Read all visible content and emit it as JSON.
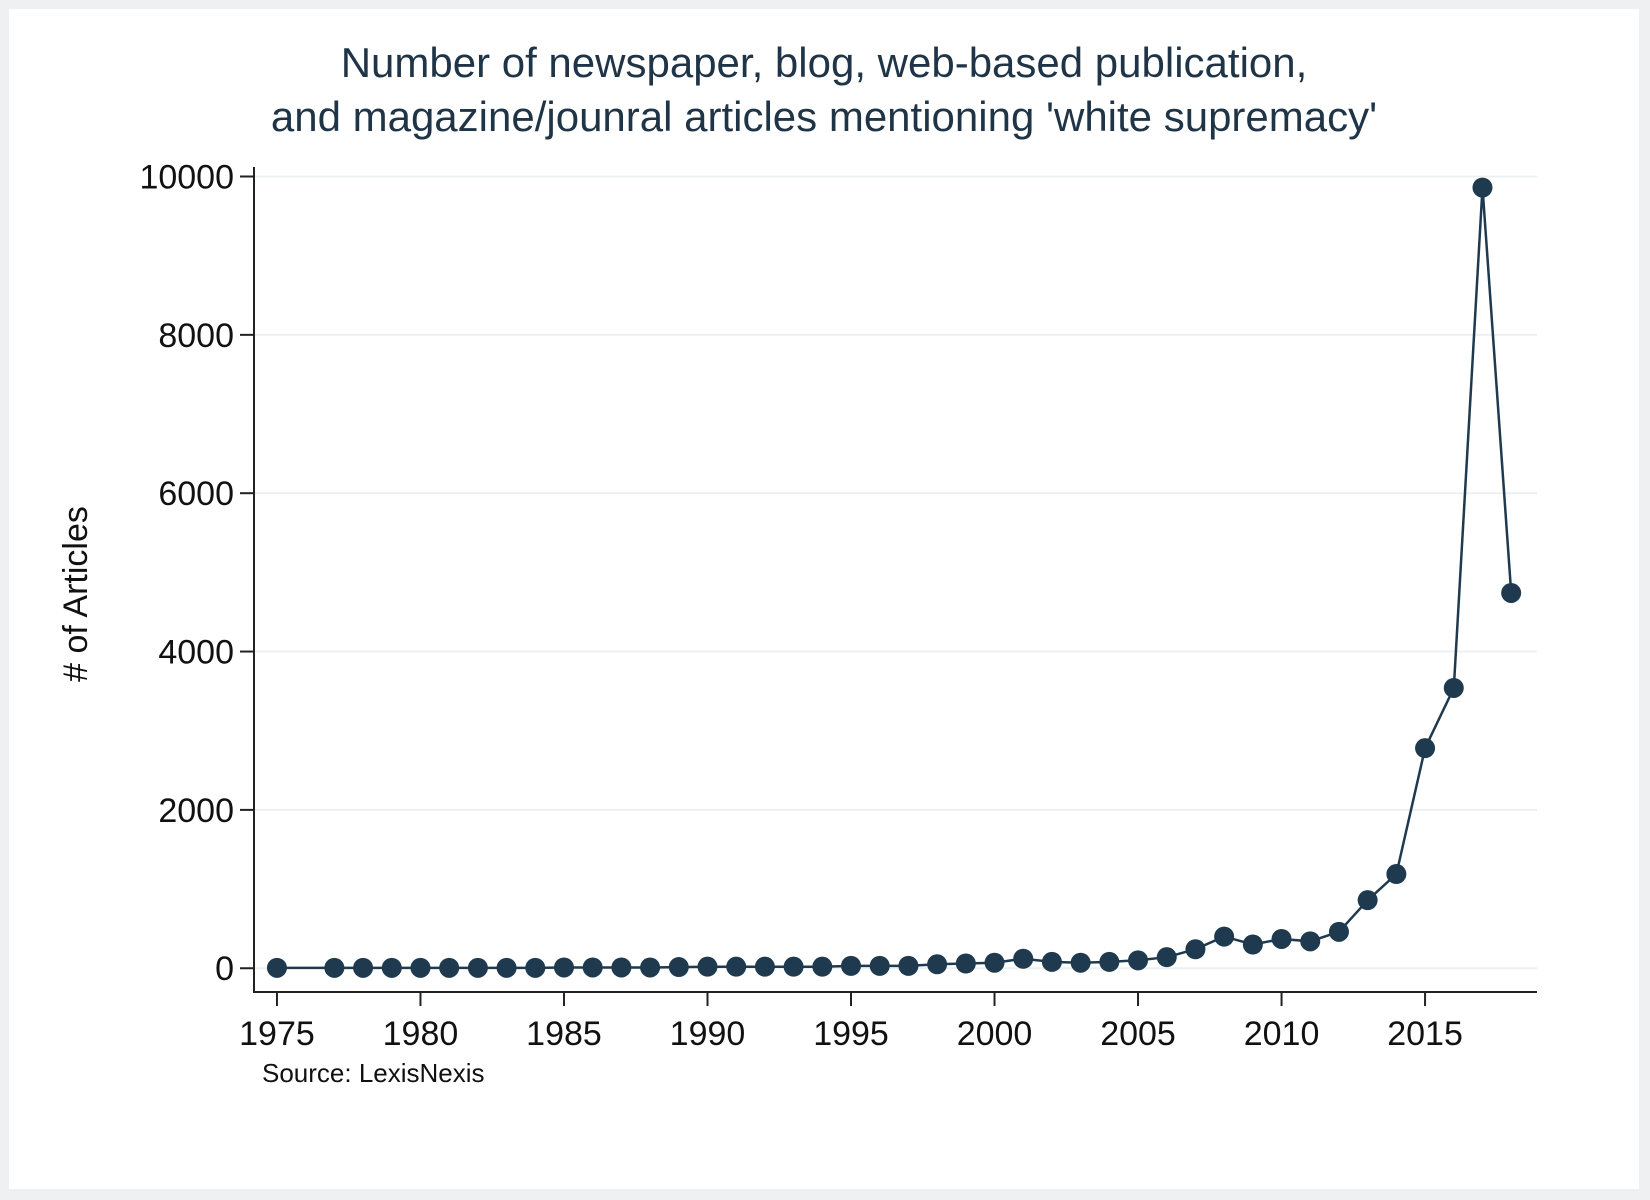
{
  "chart_data": {
    "type": "line",
    "title": [
      "Number of newspaper, blog, web-based publication,",
      "and magazine/jounral articles mentioning 'white supremacy'"
    ],
    "xlabel": "",
    "ylabel": "# of Articles",
    "note": "Source: LexisNexis",
    "xlim": [
      1974.2,
      2018.9
    ],
    "ylim": [
      -300,
      10120
    ],
    "xticks": [
      1975,
      1980,
      1985,
      1990,
      1995,
      2000,
      2005,
      2010,
      2015
    ],
    "yticks": [
      0,
      2000,
      4000,
      6000,
      8000,
      10000
    ],
    "grid": true,
    "colors": {
      "line": "#1f3a4e",
      "marker": "#1f3a4e",
      "grid": "#ecf0f3",
      "axis": "#222222"
    },
    "series": [
      {
        "x": [
          1975,
          1977,
          1978,
          1979,
          1980,
          1981,
          1982,
          1983,
          1984,
          1985,
          1986,
          1987,
          1988,
          1989,
          1990,
          1991,
          1992,
          1993,
          1994,
          1995,
          1996,
          1997,
          1998,
          1999,
          2000,
          2001,
          2002,
          2003,
          2004,
          2005,
          2006,
          2007,
          2008,
          2009,
          2010,
          2011,
          2012,
          2013,
          2014,
          2015,
          2016,
          2017,
          2018
        ],
        "y": [
          5,
          5,
          5,
          5,
          5,
          5,
          5,
          5,
          5,
          10,
          10,
          10,
          10,
          15,
          20,
          20,
          20,
          20,
          20,
          30,
          30,
          30,
          50,
          60,
          70,
          120,
          80,
          70,
          80,
          100,
          140,
          240,
          400,
          300,
          370,
          340,
          460,
          860,
          1190,
          2780,
          3540,
          9860,
          4740
        ]
      }
    ]
  }
}
